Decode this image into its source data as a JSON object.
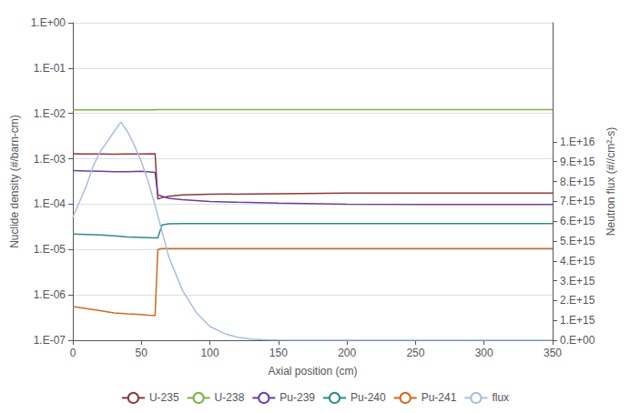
{
  "chart_data": {
    "type": "line",
    "xlabel": "Axial position (cm)",
    "ylabel": "Nuclide density (#/barn-cm)",
    "y2label": "Neutron flux (#//cm²-s)",
    "log": "y",
    "grid": true,
    "legend": "bottom",
    "xlim": [
      0,
      350
    ],
    "xticks": [
      0,
      50,
      100,
      150,
      200,
      250,
      300,
      350
    ],
    "ylim": [
      1e-07,
      1.0
    ],
    "yticks": [
      {
        "value": 1e-07,
        "label": "1.E-07"
      },
      {
        "value": 1e-06,
        "label": "1.E-06"
      },
      {
        "value": 1e-05,
        "label": "1.E-05"
      },
      {
        "value": 0.0001,
        "label": "1.E-04"
      },
      {
        "value": 0.001,
        "label": "1.E-03"
      },
      {
        "value": 0.01,
        "label": "1.E-02"
      },
      {
        "value": 0.1,
        "label": "1.E-01"
      },
      {
        "value": 1.0,
        "label": "1.E+00"
      }
    ],
    "y2lim": [
      0,
      1.6e+16
    ],
    "y2ticks": [
      {
        "value": 0,
        "label": "0.E+00"
      },
      {
        "value": 1000000000000000.0,
        "label": "1.E+15"
      },
      {
        "value": 2000000000000000.0,
        "label": "2.E+15"
      },
      {
        "value": 3000000000000000.0,
        "label": "3.E+15"
      },
      {
        "value": 4000000000000000.0,
        "label": "4.E+15"
      },
      {
        "value": 5000000000000000.0,
        "label": "5.E+15"
      },
      {
        "value": 6000000000000000.0,
        "label": "6.E+15"
      },
      {
        "value": 7000000000000000.0,
        "label": "7.E+15"
      },
      {
        "value": 8000000000000000.0,
        "label": "8.E+15"
      },
      {
        "value": 9000000000000000.0,
        "label": "9.E+15"
      },
      {
        "value": 1e+16,
        "label": "1.E+16"
      }
    ],
    "series": [
      {
        "name": "U-235",
        "color": "#8B3A3A",
        "x": [
          0,
          5,
          10,
          20,
          30,
          40,
          50,
          60,
          62,
          65,
          70,
          80,
          100,
          150,
          200,
          250,
          300,
          350
        ],
        "values": [
          0.0013,
          0.00128,
          0.00128,
          0.00128,
          0.00126,
          0.00128,
          0.00128,
          0.0013,
          0.00013,
          0.00014,
          0.00015,
          0.00016,
          0.000165,
          0.00017,
          0.000175,
          0.000175,
          0.000175,
          0.000175
        ]
      },
      {
        "name": "U-238",
        "color": "#7CB342",
        "x": [
          0,
          60,
          62,
          70,
          350
        ],
        "values": [
          0.012,
          0.012,
          0.0122,
          0.0122,
          0.0122
        ]
      },
      {
        "name": "Pu-239",
        "color": "#6B3FA0",
        "x": [
          0,
          10,
          20,
          30,
          40,
          50,
          60,
          62,
          70,
          80,
          100,
          120,
          150,
          200,
          250,
          300,
          350
        ],
        "values": [
          0.00055,
          0.00054,
          0.00053,
          0.00052,
          0.00052,
          0.00053,
          0.0005,
          0.00016,
          0.000135,
          0.000125,
          0.000115,
          0.00011,
          0.000105,
          0.0001,
          9.8e-05,
          9.8e-05,
          9.8e-05
        ]
      },
      {
        "name": "Pu-240",
        "color": "#2E8B8B",
        "x": [
          0,
          10,
          20,
          30,
          40,
          50,
          60,
          62,
          65,
          70,
          80,
          100,
          150,
          200,
          250,
          300,
          350
        ],
        "values": [
          2.2e-05,
          2.15e-05,
          2.1e-05,
          2e-05,
          1.9e-05,
          1.85e-05,
          1.8e-05,
          1.8e-05,
          3.5e-05,
          3.7e-05,
          3.75e-05,
          3.75e-05,
          3.75e-05,
          3.75e-05,
          3.75e-05,
          3.75e-05,
          3.75e-05
        ]
      },
      {
        "name": "Pu-241",
        "color": "#D2691E",
        "x": [
          0,
          10,
          20,
          30,
          40,
          50,
          58,
          60,
          62,
          65,
          70,
          80,
          100,
          150,
          200,
          250,
          300,
          350
        ],
        "values": [
          5.5e-07,
          5e-07,
          4.5e-07,
          4e-07,
          3.8e-07,
          3.7e-07,
          3.5e-07,
          3.5e-07,
          1e-05,
          1.05e-05,
          1.05e-05,
          1.05e-05,
          1.05e-05,
          1.05e-05,
          1.05e-05,
          1.05e-05,
          1.05e-05,
          1.05e-05
        ]
      },
      {
        "name": "flux",
        "color": "#A8BEDE",
        "axis": "y2",
        "x": [
          0,
          5,
          10,
          15,
          20,
          25,
          30,
          35,
          40,
          45,
          50,
          55,
          60,
          65,
          70,
          80,
          90,
          100,
          110,
          120,
          130,
          140,
          150,
          160,
          180,
          200,
          220,
          230,
          250,
          300,
          350
        ],
        "values": [
          6200000000000000.0,
          7000000000000000.0,
          7800000000000000.0,
          8800000000000000.0,
          9500000000000000.0,
          1e+16,
          1.05e+16,
          1.1e+16,
          1.05e+16,
          9800000000000000.0,
          9000000000000000.0,
          8000000000000000.0,
          6800000000000000.0,
          5500000000000000.0,
          4200000000000000.0,
          2500000000000000.0,
          1400000000000000.0,
          700000000000000.0,
          350000000000000.0,
          150000000000000.0,
          60000000000000.0,
          25000000000000.0,
          10000000000000.0,
          4000000000000.0,
          800000000000.0,
          200000000000.0,
          50000000000.0,
          20000000000.0,
          10000000000.0,
          10000000000.0,
          10000000000.0
        ]
      }
    ]
  }
}
